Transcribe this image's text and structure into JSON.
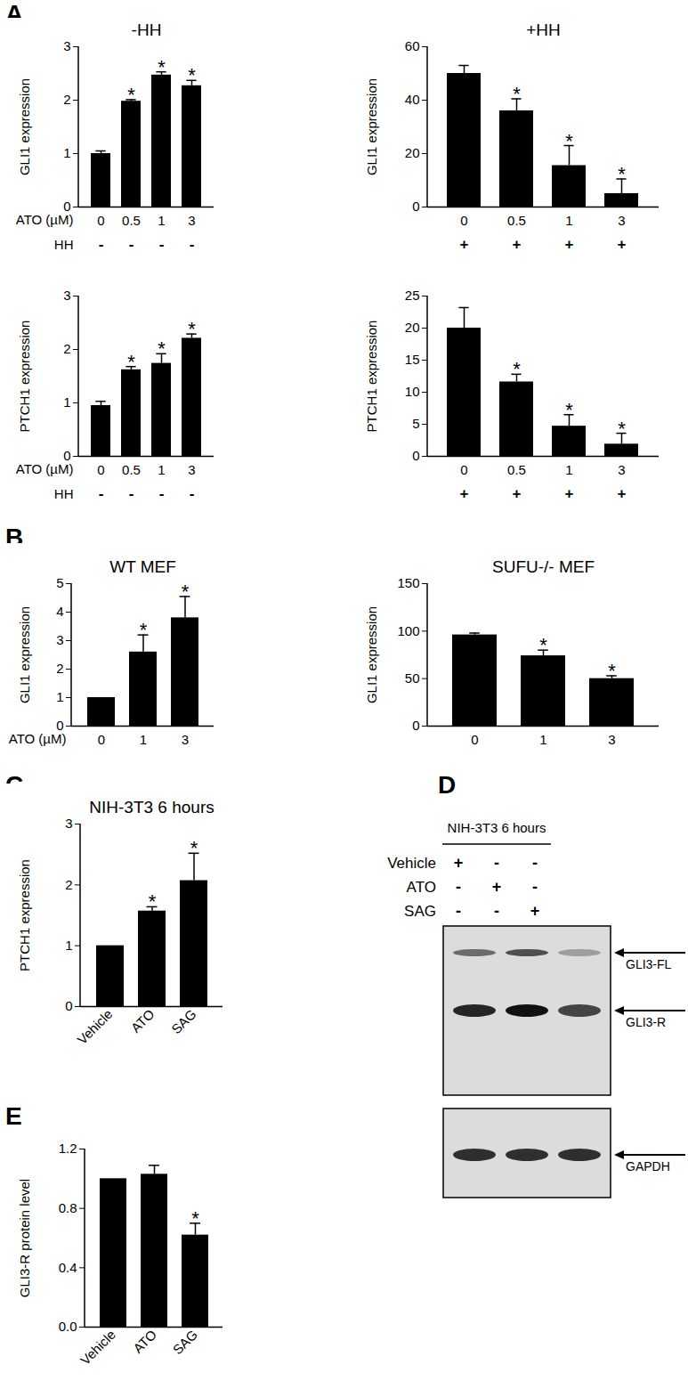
{
  "panel_labels": [
    "A",
    "B",
    "C",
    "D",
    "E"
  ],
  "chart_data": [
    {
      "type": "bar",
      "title": "-HH",
      "ylabel": "GLI1 expression",
      "xlabel": "ATO (µM)",
      "categories": [
        "0",
        "0.5",
        "1",
        "3"
      ],
      "values": [
        1.0,
        1.98,
        2.47,
        2.27
      ],
      "errors": [
        0.05,
        0.03,
        0.06,
        0.1
      ],
      "annotations": [
        null,
        "*",
        "*",
        "*"
      ],
      "hh_label": "HH",
      "hh": [
        "-",
        "-",
        "-",
        "-"
      ],
      "ylim": [
        0,
        3
      ],
      "yticks": [
        0,
        1,
        2,
        3
      ],
      "color": "#000000"
    },
    {
      "type": "bar",
      "title": "+HH",
      "ylabel": "GLI1 expression",
      "categories": [
        "0",
        "0.5",
        "1",
        "3"
      ],
      "values": [
        50,
        36,
        15.5,
        5
      ],
      "errors": [
        3,
        4.5,
        7.5,
        5.5
      ],
      "annotations": [
        null,
        "*",
        "*",
        "*"
      ],
      "hh": [
        "+",
        "+",
        "+",
        "+"
      ],
      "ylim": [
        0,
        60
      ],
      "yticks": [
        0,
        20,
        40,
        60
      ],
      "color": "#000000"
    },
    {
      "type": "bar",
      "ylabel": "PTCH1 expression",
      "xlabel": "ATO (µM)",
      "categories": [
        "0",
        "0.5",
        "1",
        "3"
      ],
      "values": [
        0.95,
        1.62,
        1.74,
        2.21
      ],
      "errors": [
        0.08,
        0.06,
        0.18,
        0.08
      ],
      "annotations": [
        null,
        "*",
        "*",
        "*"
      ],
      "hh_label": "HH",
      "hh": [
        "-",
        "-",
        "-",
        "-"
      ],
      "ylim": [
        0,
        3
      ],
      "yticks": [
        0,
        1,
        2,
        3
      ],
      "color": "#000000"
    },
    {
      "type": "bar",
      "ylabel": "PTCH1 expression",
      "categories": [
        "0",
        "0.5",
        "1",
        "3"
      ],
      "values": [
        20,
        11.6,
        4.7,
        1.9
      ],
      "errors": [
        3.2,
        1.2,
        1.8,
        1.7
      ],
      "annotations": [
        null,
        "*",
        "*",
        "*"
      ],
      "hh": [
        "+",
        "+",
        "+",
        "+"
      ],
      "ylim": [
        0,
        25
      ],
      "yticks": [
        0,
        5,
        10,
        15,
        20,
        25
      ],
      "color": "#000000"
    },
    {
      "type": "bar",
      "title": "WT MEF",
      "ylabel": "GLI1 expression",
      "xlabel": "ATO (µM)",
      "categories": [
        "0",
        "1",
        "3"
      ],
      "values": [
        1,
        2.6,
        3.8
      ],
      "errors": [
        0,
        0.6,
        0.75
      ],
      "annotations": [
        null,
        "*",
        "*"
      ],
      "ylim": [
        0,
        5
      ],
      "yticks": [
        0,
        1,
        2,
        3,
        4,
        5
      ],
      "color": "#000000"
    },
    {
      "type": "bar",
      "title": "SUFU-/- MEF",
      "ylabel": "GLI1 expression",
      "categories": [
        "0",
        "1",
        "3"
      ],
      "values": [
        96,
        74,
        50
      ],
      "errors": [
        2,
        6,
        3
      ],
      "annotations": [
        null,
        "*",
        "*"
      ],
      "ylim": [
        0,
        150
      ],
      "yticks": [
        0,
        50,
        100,
        150
      ],
      "color": "#000000"
    },
    {
      "type": "bar",
      "title": "NIH-3T3 6 hours",
      "ylabel": "PTCH1 expression",
      "categories": [
        "Vehicle",
        "ATO",
        "SAG"
      ],
      "values": [
        1,
        1.57,
        2.07
      ],
      "errors": [
        0,
        0.07,
        0.45
      ],
      "annotations": [
        null,
        "*",
        "*"
      ],
      "ylim": [
        0,
        3
      ],
      "yticks": [
        0,
        1,
        2,
        3
      ],
      "color": "#000000"
    },
    {
      "type": "bar",
      "ylabel": "GLI3-R protein level",
      "categories": [
        "Vehicle",
        "ATO",
        "SAG"
      ],
      "values": [
        1,
        1.03,
        0.62
      ],
      "errors": [
        0,
        0.06,
        0.08
      ],
      "annotations": [
        null,
        null,
        "*"
      ],
      "ylim": [
        0,
        1.2
      ],
      "yticks": [
        {
          "value": 0,
          "label": "0.0"
        },
        0.4,
        0.8,
        1.2
      ],
      "color": "#000000"
    }
  ],
  "blot": {
    "title": "NIH-3T3 6 hours",
    "conditions": [
      {
        "label": "Vehicle",
        "signs": [
          "+",
          "-",
          "-"
        ]
      },
      {
        "label": "ATO",
        "signs": [
          "-",
          "+",
          "-"
        ]
      },
      {
        "label": "SAG",
        "signs": [
          "-",
          "-",
          "+"
        ]
      }
    ],
    "bands": [
      {
        "label": "GLI3-FL",
        "intensity": [
          0.55,
          0.7,
          0.3
        ]
      },
      {
        "label": "GLI3-R",
        "intensity": [
          0.9,
          1.0,
          0.75
        ]
      },
      {
        "label": "GAPDH",
        "intensity": [
          0.85,
          0.85,
          0.85
        ]
      }
    ]
  }
}
